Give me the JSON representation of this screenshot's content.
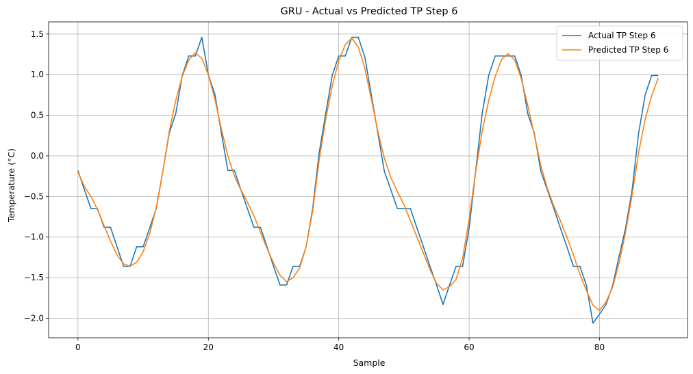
{
  "chart_data": {
    "type": "line",
    "title": "GRU - Actual vs Predicted TP Step 6",
    "xlabel": "Sample",
    "ylabel": "Temperature (°C)",
    "xlim": [
      -4.5,
      93.5
    ],
    "ylim": [
      -2.24,
      1.65
    ],
    "xticks": [
      0,
      20,
      40,
      60,
      80
    ],
    "yticks": [
      -2.0,
      -1.5,
      -1.0,
      -0.5,
      0.0,
      0.5,
      1.0,
      1.5
    ],
    "grid": true,
    "legend_position": "top-right",
    "series": [
      {
        "name": "Actual TP Step 6",
        "color": "#1f77b4",
        "values": [
          -0.18,
          -0.42,
          -0.65,
          -0.65,
          -0.88,
          -0.88,
          -1.12,
          -1.36,
          -1.36,
          -1.12,
          -1.12,
          -0.89,
          -0.65,
          -0.2,
          0.28,
          0.52,
          0.99,
          1.23,
          1.23,
          1.46,
          1.0,
          0.76,
          0.28,
          -0.18,
          -0.18,
          -0.42,
          -0.65,
          -0.88,
          -0.88,
          -1.12,
          -1.36,
          -1.59,
          -1.59,
          -1.36,
          -1.36,
          -1.12,
          -0.65,
          0.04,
          0.52,
          0.99,
          1.23,
          1.23,
          1.46,
          1.46,
          1.22,
          0.75,
          0.28,
          -0.19,
          -0.42,
          -0.65,
          -0.65,
          -0.65,
          -0.89,
          -1.12,
          -1.36,
          -1.59,
          -1.83,
          -1.59,
          -1.36,
          -1.36,
          -0.89,
          -0.19,
          0.52,
          0.99,
          1.23,
          1.23,
          1.23,
          1.23,
          0.99,
          0.52,
          0.28,
          -0.19,
          -0.42,
          -0.65,
          -0.89,
          -1.12,
          -1.36,
          -1.36,
          -1.6,
          -2.06,
          -1.95,
          -1.83,
          -1.6,
          -1.24,
          -0.89,
          -0.42,
          0.28,
          0.75,
          0.99,
          0.99
        ]
      },
      {
        "name": "Predicted TP Step 6",
        "color": "#ff7f0e",
        "values": [
          -0.2,
          -0.38,
          -0.5,
          -0.66,
          -0.86,
          -1.05,
          -1.22,
          -1.33,
          -1.36,
          -1.31,
          -1.18,
          -0.96,
          -0.64,
          -0.2,
          0.3,
          0.68,
          0.98,
          1.18,
          1.27,
          1.2,
          1.0,
          0.7,
          0.33,
          0.0,
          -0.25,
          -0.42,
          -0.57,
          -0.74,
          -0.94,
          -1.14,
          -1.32,
          -1.47,
          -1.55,
          -1.5,
          -1.38,
          -1.12,
          -0.68,
          -0.05,
          0.45,
          0.86,
          1.17,
          1.37,
          1.45,
          1.34,
          1.08,
          0.7,
          0.3,
          -0.03,
          -0.27,
          -0.44,
          -0.6,
          -0.8,
          -1.0,
          -1.2,
          -1.4,
          -1.57,
          -1.65,
          -1.61,
          -1.52,
          -1.26,
          -0.78,
          -0.2,
          0.3,
          0.68,
          0.98,
          1.19,
          1.26,
          1.18,
          0.95,
          0.62,
          0.26,
          -0.12,
          -0.4,
          -0.62,
          -0.8,
          -1.0,
          -1.22,
          -1.46,
          -1.66,
          -1.84,
          -1.9,
          -1.8,
          -1.62,
          -1.32,
          -0.94,
          -0.48,
          0.04,
          0.45,
          0.74,
          0.96
        ]
      }
    ]
  }
}
